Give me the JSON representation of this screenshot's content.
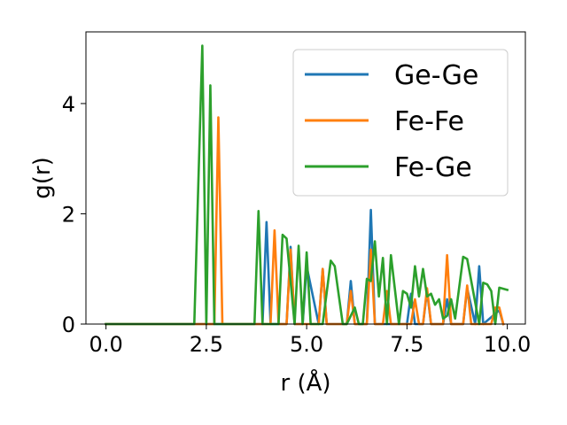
{
  "chart_data": {
    "type": "line",
    "title": "",
    "xlabel": "r (Å)",
    "ylabel": "g(r)",
    "xlim": [
      -0.5,
      10.45
    ],
    "ylim": [
      0,
      5.3
    ],
    "xticks": [
      0.0,
      2.5,
      5.0,
      7.5,
      10.0
    ],
    "xtick_labels": [
      "0.0",
      "2.5",
      "5.0",
      "7.5",
      "10.0"
    ],
    "yticks": [
      0,
      2,
      4
    ],
    "ytick_labels": [
      "0",
      "2",
      "4"
    ],
    "grid": false,
    "legend_position": "upper right",
    "series": [
      {
        "name": "Ge-Ge",
        "color": "#1f77b4",
        "x": [
          0.0,
          3.9,
          4.0,
          4.1,
          4.5,
          4.6,
          4.7,
          4.9,
          5.0,
          5.3,
          5.4,
          5.5,
          6.0,
          6.1,
          6.2,
          6.5,
          6.6,
          6.7,
          7.5,
          7.6,
          7.7,
          7.9,
          8.0,
          8.1,
          8.4,
          8.5,
          8.6,
          8.9,
          9.0,
          9.2,
          9.3,
          9.4,
          9.8,
          9.9
        ],
        "y": [
          0,
          0,
          1.85,
          0,
          0,
          1.4,
          0,
          0,
          1.05,
          0,
          1.0,
          0,
          0,
          0.78,
          0,
          0,
          2.07,
          0,
          0,
          0.55,
          0,
          0,
          0.6,
          0,
          0,
          0.45,
          0,
          0,
          0.65,
          0,
          1.05,
          0,
          0.25,
          0
        ]
      },
      {
        "name": "Fe-Fe",
        "color": "#ff7f0e",
        "x": [
          0.0,
          2.7,
          2.8,
          2.9,
          4.1,
          4.2,
          4.3,
          4.5,
          4.6,
          4.7,
          5.3,
          5.4,
          5.5,
          6.0,
          6.1,
          6.2,
          6.5,
          6.6,
          6.7,
          6.9,
          7.0,
          7.1,
          7.6,
          7.7,
          7.8,
          7.9,
          8.0,
          8.1,
          8.4,
          8.5,
          8.6,
          8.9,
          9.0,
          9.1,
          9.6,
          9.7,
          9.8,
          9.9
        ],
        "y": [
          0,
          0,
          3.75,
          0,
          0,
          1.7,
          0,
          0,
          1.35,
          0,
          0,
          1.0,
          0,
          0,
          0.6,
          0,
          0,
          1.35,
          0,
          0,
          0.6,
          0,
          0,
          0.45,
          0,
          0,
          0.65,
          0,
          0,
          1.25,
          0,
          0,
          0.7,
          0,
          0,
          0.3,
          0.3,
          0
        ]
      },
      {
        "name": "Fe-Ge",
        "color": "#2ca02c",
        "x": [
          0.0,
          2.2,
          2.4,
          2.5,
          2.6,
          2.7,
          3.7,
          3.8,
          3.9,
          4.3,
          4.4,
          4.5,
          4.7,
          4.8,
          4.9,
          5.0,
          5.1,
          5.4,
          5.6,
          5.7,
          5.9,
          6.0,
          6.2,
          6.3,
          6.4,
          6.5,
          6.6,
          6.7,
          6.8,
          6.9,
          7.0,
          7.1,
          7.3,
          7.4,
          7.5,
          7.6,
          7.7,
          7.8,
          7.9,
          8.0,
          8.1,
          8.2,
          8.3,
          8.4,
          8.5,
          8.6,
          8.7,
          8.9,
          9.0,
          9.3,
          9.4,
          9.5,
          9.6,
          9.7,
          9.8,
          10.0
        ],
        "y": [
          0,
          0,
          5.05,
          0,
          4.33,
          0,
          0,
          2.05,
          0,
          0,
          1.62,
          1.55,
          0,
          1.42,
          0,
          1.3,
          0,
          0,
          1.15,
          1.05,
          0,
          0,
          0.3,
          0,
          0,
          0.82,
          0.78,
          1.5,
          0.5,
          1.2,
          0,
          1.25,
          0,
          0.6,
          0.55,
          0.3,
          1.05,
          0.5,
          1.0,
          0.5,
          0.55,
          0.35,
          0.45,
          0.1,
          0.15,
          0.45,
          0.1,
          1.22,
          1.18,
          0,
          0.75,
          0.72,
          0.6,
          0,
          0.66,
          0.62
        ]
      }
    ]
  }
}
